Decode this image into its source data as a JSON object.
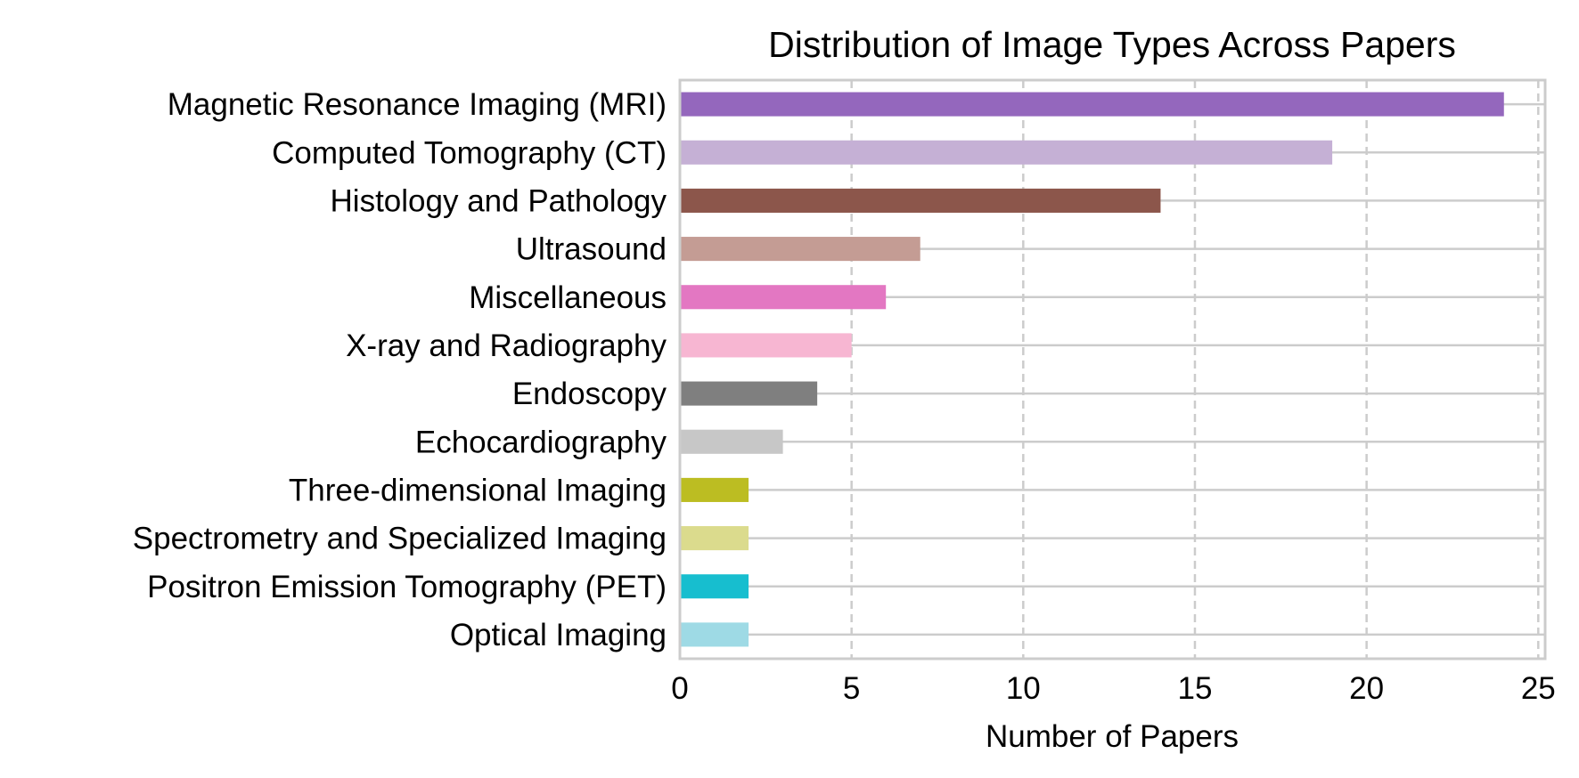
{
  "chart_data": {
    "type": "bar",
    "orientation": "horizontal",
    "title": "Distribution of Image Types Across Papers",
    "xlabel": "Number of Papers",
    "ylabel": "",
    "xlim": [
      0,
      25.2
    ],
    "xticks": [
      0,
      5,
      10,
      15,
      20,
      25
    ],
    "grid": {
      "x": "dashed",
      "y": "solid"
    },
    "categories": [
      "Magnetic Resonance Imaging (MRI)",
      "Computed Tomography (CT)",
      "Histology and Pathology",
      "Ultrasound",
      "Miscellaneous",
      "X-ray and Radiography",
      "Endoscopy",
      "Echocardiography",
      "Three-dimensional Imaging",
      "Spectrometry and Specialized Imaging",
      "Positron Emission Tomography (PET)",
      "Optical Imaging"
    ],
    "values": [
      24,
      19,
      14,
      7,
      6,
      5,
      4,
      3,
      2,
      2,
      2,
      2
    ],
    "colors": [
      "#9467bd",
      "#c5b0d5",
      "#8c564b",
      "#c49c94",
      "#e377c2",
      "#f7b6d2",
      "#7f7f7f",
      "#c7c7c7",
      "#bcbd22",
      "#dbdb8d",
      "#17becf",
      "#9edae5"
    ]
  }
}
